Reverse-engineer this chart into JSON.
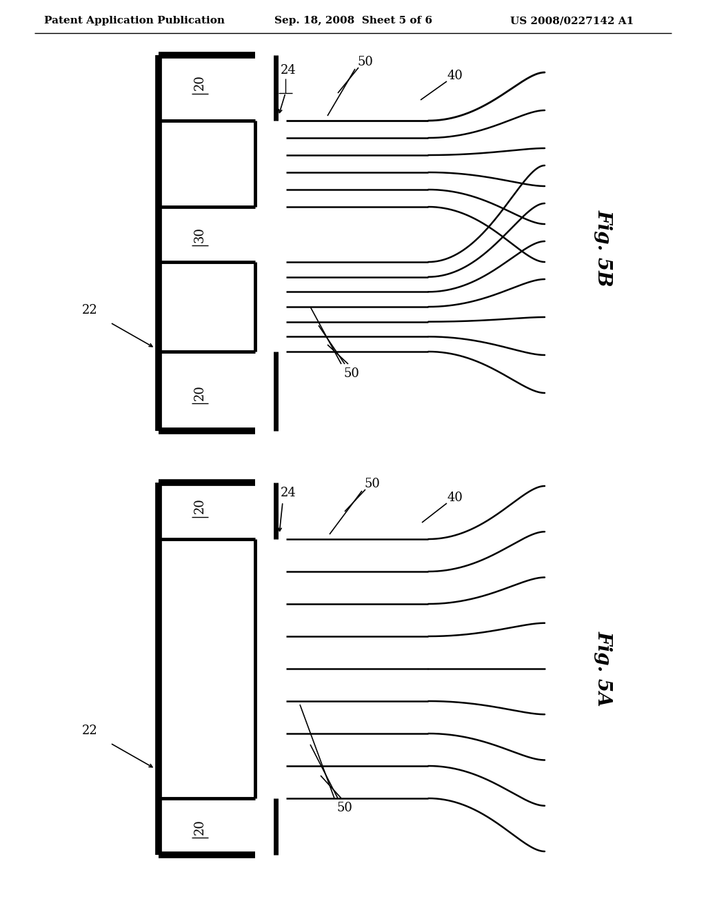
{
  "bg_color": "#ffffff",
  "line_color": "#000000",
  "header_left": "Patent Application Publication",
  "header_mid": "Sep. 18, 2008  Sheet 5 of 6",
  "header_right": "US 2008/0227142 A1",
  "fig_5b_label": "Fig. 5B",
  "fig_5a_label": "Fig. 5A"
}
